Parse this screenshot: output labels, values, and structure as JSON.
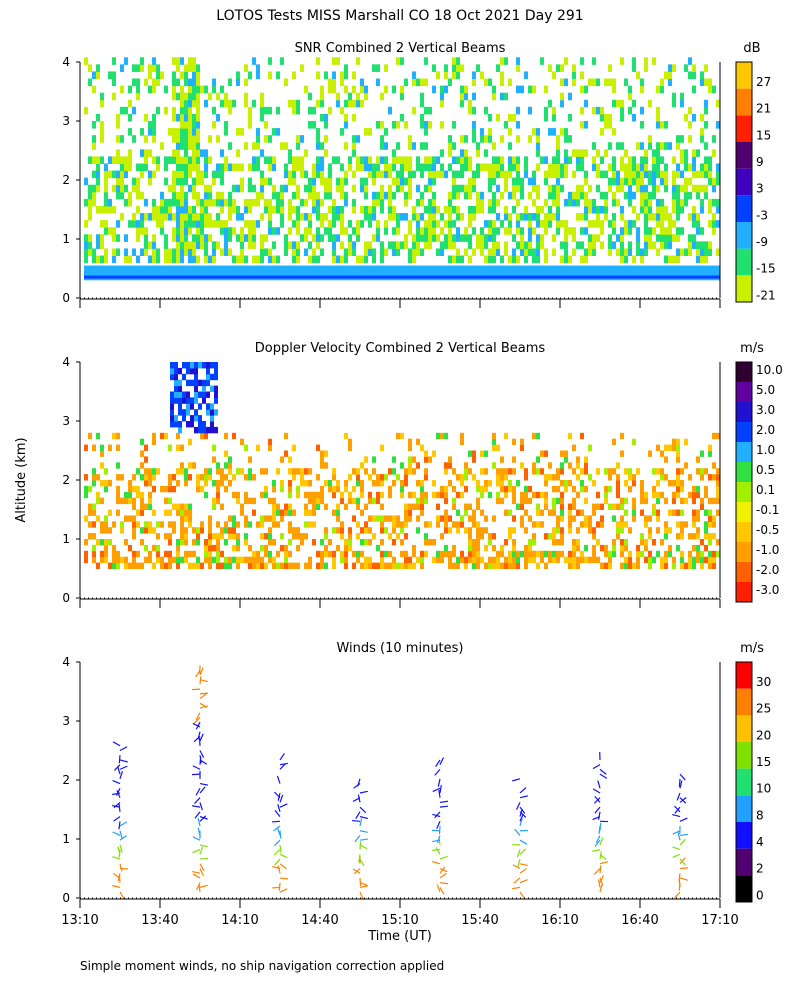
{
  "figure_title": "LOTOS Tests MISS Marshall CO  18 Oct 2021 Day 291",
  "footnote": "Simple moment winds, no ship navigation correction applied",
  "chart_data": [
    {
      "type": "heatmap",
      "title": "SNR Combined 2 Vertical Beams",
      "xlabel": "",
      "ylabel": "",
      "ylim": [
        0,
        4
      ],
      "y_ticks": [
        "0",
        "1",
        "2",
        "3",
        "4"
      ],
      "colorbar_unit": "dB",
      "colorbar_labels": [
        "27",
        "21",
        "15",
        "9",
        "3",
        "-3",
        "-9",
        "-15",
        "-21"
      ],
      "colorbar_colors": [
        "#ffc800",
        "#ff8000",
        "#ff2000",
        "#500070",
        "#4000c0",
        "#0040ff",
        "#20b0ff",
        "#20e070",
        "#c8f000"
      ]
    },
    {
      "type": "heatmap",
      "title": "Doppler Velocity Combined 2 Vertical Beams",
      "ylabel": "Altitude (km)",
      "ylim": [
        0,
        4
      ],
      "y_ticks": [
        "0",
        "1",
        "2",
        "3",
        "4"
      ],
      "colorbar_unit": "m/s",
      "colorbar_labels": [
        "10.0",
        "5.0",
        "3.0",
        "2.0",
        "1.0",
        "0.5",
        "0.1",
        "-0.1",
        "-0.5",
        "-1.0",
        "-2.0",
        "-3.0"
      ],
      "colorbar_colors": [
        "#300030",
        "#6000a0",
        "#2010d0",
        "#0040ff",
        "#20b0ff",
        "#30e040",
        "#a0f000",
        "#f0f000",
        "#ffc800",
        "#ffa000",
        "#ff6000",
        "#ff2000"
      ]
    },
    {
      "type": "scatter",
      "title": "Winds (10 minutes)",
      "xlabel": "Time (UT)",
      "ylim": [
        0,
        4
      ],
      "y_ticks": [
        "0",
        "1",
        "2",
        "3",
        "4"
      ],
      "x_ticks": [
        "13:10",
        "13:40",
        "14:10",
        "14:40",
        "15:10",
        "15:40",
        "16:10",
        "16:40",
        "17:10"
      ],
      "colorbar_unit": "m/s",
      "colorbar_labels": [
        "30",
        "25",
        "20",
        "15",
        "10",
        "8",
        "4",
        "2",
        "0"
      ],
      "colorbar_colors": [
        "#ff0000",
        "#ff8000",
        "#ffc000",
        "#80e000",
        "#20e070",
        "#20a0ff",
        "#1010ff",
        "#500070",
        "#000000"
      ],
      "wind_profile_times": [
        "13:25",
        "13:55",
        "14:25",
        "14:55",
        "15:25",
        "15:55",
        "16:25",
        "16:55"
      ]
    }
  ]
}
